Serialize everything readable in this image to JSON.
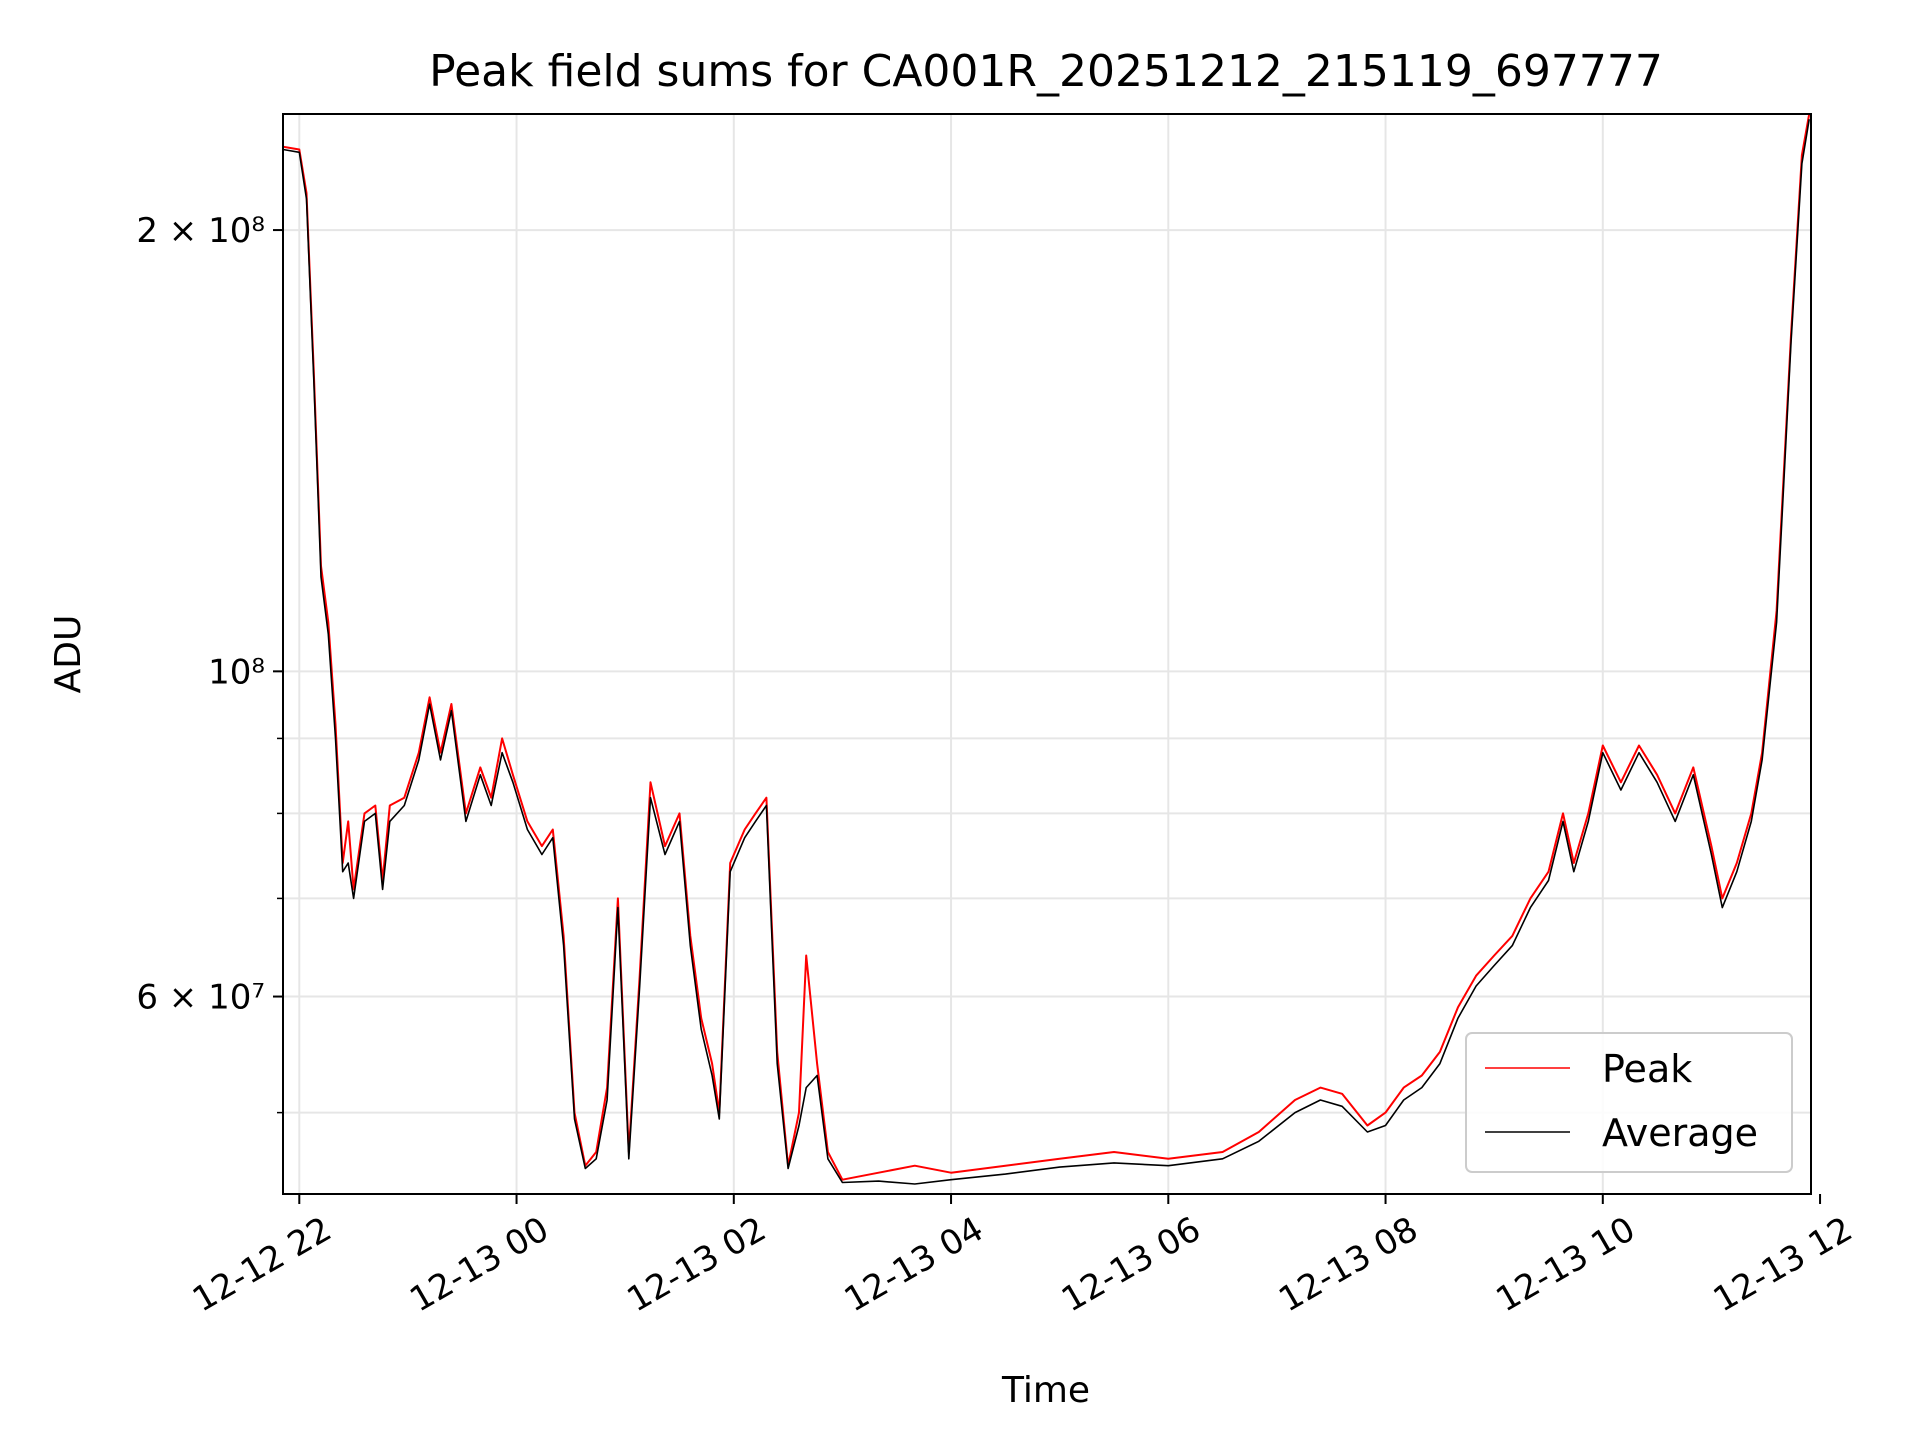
{
  "chart_data": {
    "type": "line",
    "title": "Peak field sums for CA001R_20251212_215119_697777",
    "xlabel": "Time",
    "ylabel": "ADU",
    "x_scale": "time",
    "y_scale": "log",
    "xlim": [
      "2025-12-12 21:51",
      "2025-12-13 11:55"
    ],
    "ylim": [
      44000000,
      240000000
    ],
    "grid": true,
    "legend_position": "lower-right",
    "x_ticks": [
      {
        "t": "2025-12-12 22:00",
        "label": "12-12 22"
      },
      {
        "t": "2025-12-13 00:00",
        "label": "12-13 00"
      },
      {
        "t": "2025-12-13 02:00",
        "label": "12-13 02"
      },
      {
        "t": "2025-12-13 04:00",
        "label": "12-13 04"
      },
      {
        "t": "2025-12-13 06:00",
        "label": "12-13 06"
      },
      {
        "t": "2025-12-13 08:00",
        "label": "12-13 08"
      },
      {
        "t": "2025-12-13 10:00",
        "label": "12-13 10"
      },
      {
        "t": "2025-12-13 12:00",
        "label": "12-13 12"
      }
    ],
    "y_major_ticks": [
      {
        "value": 60000000,
        "label": "6 × 10⁷"
      },
      {
        "value": 100000000,
        "label": "10⁸"
      },
      {
        "value": 200000000,
        "label": "2 × 10⁸"
      }
    ],
    "y_minor_ticks": [
      50000000,
      70000000,
      80000000,
      90000000
    ],
    "series": [
      {
        "name": "Peak",
        "color": "#ff0000",
        "points": [
          [
            "2025-12-12 21:51",
            228000000
          ],
          [
            "2025-12-12 22:00",
            227000000
          ],
          [
            "2025-12-12 22:04",
            212000000
          ],
          [
            "2025-12-12 22:08",
            160000000
          ],
          [
            "2025-12-12 22:12",
            118000000
          ],
          [
            "2025-12-12 22:16",
            108000000
          ],
          [
            "2025-12-12 22:20",
            92000000
          ],
          [
            "2025-12-12 22:24",
            74000000
          ],
          [
            "2025-12-12 22:27",
            79000000
          ],
          [
            "2025-12-12 22:30",
            71000000
          ],
          [
            "2025-12-12 22:36",
            80000000
          ],
          [
            "2025-12-12 22:42",
            81000000
          ],
          [
            "2025-12-12 22:46",
            72000000
          ],
          [
            "2025-12-12 22:50",
            81000000
          ],
          [
            "2025-12-12 22:58",
            82000000
          ],
          [
            "2025-12-12 23:06",
            88000000
          ],
          [
            "2025-12-12 23:12",
            96000000
          ],
          [
            "2025-12-12 23:18",
            88000000
          ],
          [
            "2025-12-12 23:24",
            95000000
          ],
          [
            "2025-12-12 23:32",
            80000000
          ],
          [
            "2025-12-12 23:40",
            86000000
          ],
          [
            "2025-12-12 23:46",
            82000000
          ],
          [
            "2025-12-12 23:52",
            90000000
          ],
          [
            "2025-12-12 23:58",
            85000000
          ],
          [
            "2025-12-13 00:06",
            79000000
          ],
          [
            "2025-12-13 00:14",
            76000000
          ],
          [
            "2025-12-13 00:20",
            78000000
          ],
          [
            "2025-12-13 00:26",
            66000000
          ],
          [
            "2025-12-13 00:32",
            50000000
          ],
          [
            "2025-12-13 00:38",
            46000000
          ],
          [
            "2025-12-13 00:44",
            47000000
          ],
          [
            "2025-12-13 00:50",
            52000000
          ],
          [
            "2025-12-13 00:56",
            70000000
          ],
          [
            "2025-12-13 01:02",
            47000000
          ],
          [
            "2025-12-13 01:08",
            62000000
          ],
          [
            "2025-12-13 01:14",
            84000000
          ],
          [
            "2025-12-13 01:22",
            76000000
          ],
          [
            "2025-12-13 01:30",
            80000000
          ],
          [
            "2025-12-13 01:36",
            66000000
          ],
          [
            "2025-12-13 01:42",
            58000000
          ],
          [
            "2025-12-13 01:48",
            54000000
          ],
          [
            "2025-12-13 01:52",
            50000000
          ],
          [
            "2025-12-13 01:58",
            74000000
          ],
          [
            "2025-12-13 02:06",
            78000000
          ],
          [
            "2025-12-13 02:12",
            80000000
          ],
          [
            "2025-12-13 02:18",
            82000000
          ],
          [
            "2025-12-13 02:24",
            55000000
          ],
          [
            "2025-12-13 02:30",
            46000000
          ],
          [
            "2025-12-13 02:36",
            50000000
          ],
          [
            "2025-12-13 02:40",
            64000000
          ],
          [
            "2025-12-13 02:46",
            54000000
          ],
          [
            "2025-12-13 02:52",
            47000000
          ],
          [
            "2025-12-13 03:00",
            45000000
          ],
          [
            "2025-12-13 03:20",
            45500000
          ],
          [
            "2025-12-13 03:40",
            46000000
          ],
          [
            "2025-12-13 04:00",
            45500000
          ],
          [
            "2025-12-13 04:30",
            46000000
          ],
          [
            "2025-12-13 05:00",
            46500000
          ],
          [
            "2025-12-13 05:30",
            47000000
          ],
          [
            "2025-12-13 06:00",
            46500000
          ],
          [
            "2025-12-13 06:30",
            47000000
          ],
          [
            "2025-12-13 06:50",
            48500000
          ],
          [
            "2025-12-13 07:10",
            51000000
          ],
          [
            "2025-12-13 07:24",
            52000000
          ],
          [
            "2025-12-13 07:36",
            51500000
          ],
          [
            "2025-12-13 07:50",
            49000000
          ],
          [
            "2025-12-13 08:00",
            50000000
          ],
          [
            "2025-12-13 08:10",
            52000000
          ],
          [
            "2025-12-13 08:20",
            53000000
          ],
          [
            "2025-12-13 08:30",
            55000000
          ],
          [
            "2025-12-13 08:40",
            59000000
          ],
          [
            "2025-12-13 08:50",
            62000000
          ],
          [
            "2025-12-13 09:00",
            64000000
          ],
          [
            "2025-12-13 09:10",
            66000000
          ],
          [
            "2025-12-13 09:20",
            70000000
          ],
          [
            "2025-12-13 09:30",
            73000000
          ],
          [
            "2025-12-13 09:38",
            80000000
          ],
          [
            "2025-12-13 09:44",
            74000000
          ],
          [
            "2025-12-13 09:52",
            80000000
          ],
          [
            "2025-12-13 10:00",
            89000000
          ],
          [
            "2025-12-13 10:10",
            84000000
          ],
          [
            "2025-12-13 10:20",
            89000000
          ],
          [
            "2025-12-13 10:30",
            85000000
          ],
          [
            "2025-12-13 10:40",
            80000000
          ],
          [
            "2025-12-13 10:50",
            86000000
          ],
          [
            "2025-12-13 11:00",
            76000000
          ],
          [
            "2025-12-13 11:06",
            70000000
          ],
          [
            "2025-12-13 11:14",
            74000000
          ],
          [
            "2025-12-13 11:22",
            80000000
          ],
          [
            "2025-12-13 11:28",
            88000000
          ],
          [
            "2025-12-13 11:36",
            110000000
          ],
          [
            "2025-12-13 11:44",
            170000000
          ],
          [
            "2025-12-13 11:50",
            225000000
          ],
          [
            "2025-12-13 11:54",
            240000000
          ]
        ]
      },
      {
        "name": "Average",
        "color": "#000000",
        "points": [
          [
            "2025-12-12 21:51",
            227000000
          ],
          [
            "2025-12-12 22:00",
            226000000
          ],
          [
            "2025-12-12 22:04",
            210000000
          ],
          [
            "2025-12-12 22:08",
            158000000
          ],
          [
            "2025-12-12 22:12",
            116000000
          ],
          [
            "2025-12-12 22:16",
            106000000
          ],
          [
            "2025-12-12 22:20",
            90000000
          ],
          [
            "2025-12-12 22:24",
            73000000
          ],
          [
            "2025-12-12 22:27",
            74000000
          ],
          [
            "2025-12-12 22:30",
            70000000
          ],
          [
            "2025-12-12 22:36",
            79000000
          ],
          [
            "2025-12-12 22:42",
            80000000
          ],
          [
            "2025-12-12 22:46",
            71000000
          ],
          [
            "2025-12-12 22:50",
            79000000
          ],
          [
            "2025-12-12 22:58",
            81000000
          ],
          [
            "2025-12-12 23:06",
            87000000
          ],
          [
            "2025-12-12 23:12",
            95000000
          ],
          [
            "2025-12-12 23:18",
            87000000
          ],
          [
            "2025-12-12 23:24",
            94000000
          ],
          [
            "2025-12-12 23:32",
            79000000
          ],
          [
            "2025-12-12 23:40",
            85000000
          ],
          [
            "2025-12-12 23:46",
            81000000
          ],
          [
            "2025-12-12 23:52",
            88000000
          ],
          [
            "2025-12-12 23:58",
            84000000
          ],
          [
            "2025-12-13 00:06",
            78000000
          ],
          [
            "2025-12-13 00:14",
            75000000
          ],
          [
            "2025-12-13 00:20",
            77000000
          ],
          [
            "2025-12-13 00:26",
            65000000
          ],
          [
            "2025-12-13 00:32",
            49500000
          ],
          [
            "2025-12-13 00:38",
            45800000
          ],
          [
            "2025-12-13 00:44",
            46500000
          ],
          [
            "2025-12-13 00:50",
            51000000
          ],
          [
            "2025-12-13 00:56",
            69000000
          ],
          [
            "2025-12-13 01:02",
            46500000
          ],
          [
            "2025-12-13 01:08",
            61000000
          ],
          [
            "2025-12-13 01:14",
            82000000
          ],
          [
            "2025-12-13 01:22",
            75000000
          ],
          [
            "2025-12-13 01:30",
            79000000
          ],
          [
            "2025-12-13 01:36",
            65000000
          ],
          [
            "2025-12-13 01:42",
            57000000
          ],
          [
            "2025-12-13 01:48",
            53000000
          ],
          [
            "2025-12-13 01:52",
            49500000
          ],
          [
            "2025-12-13 01:58",
            73000000
          ],
          [
            "2025-12-13 02:06",
            77000000
          ],
          [
            "2025-12-13 02:12",
            79000000
          ],
          [
            "2025-12-13 02:18",
            81000000
          ],
          [
            "2025-12-13 02:24",
            54000000
          ],
          [
            "2025-12-13 02:30",
            45800000
          ],
          [
            "2025-12-13 02:36",
            49000000
          ],
          [
            "2025-12-13 02:40",
            52000000
          ],
          [
            "2025-12-13 02:46",
            53000000
          ],
          [
            "2025-12-13 02:52",
            46500000
          ],
          [
            "2025-12-13 03:00",
            44800000
          ],
          [
            "2025-12-13 03:20",
            44900000
          ],
          [
            "2025-12-13 03:40",
            44700000
          ],
          [
            "2025-12-13 04:00",
            45000000
          ],
          [
            "2025-12-13 04:30",
            45400000
          ],
          [
            "2025-12-13 05:00",
            45900000
          ],
          [
            "2025-12-13 05:30",
            46200000
          ],
          [
            "2025-12-13 06:00",
            46000000
          ],
          [
            "2025-12-13 06:30",
            46500000
          ],
          [
            "2025-12-13 06:50",
            47800000
          ],
          [
            "2025-12-13 07:10",
            50000000
          ],
          [
            "2025-12-13 07:24",
            51000000
          ],
          [
            "2025-12-13 07:36",
            50500000
          ],
          [
            "2025-12-13 07:50",
            48500000
          ],
          [
            "2025-12-13 08:00",
            49000000
          ],
          [
            "2025-12-13 08:10",
            51000000
          ],
          [
            "2025-12-13 08:20",
            52000000
          ],
          [
            "2025-12-13 08:30",
            54000000
          ],
          [
            "2025-12-13 08:40",
            58000000
          ],
          [
            "2025-12-13 08:50",
            61000000
          ],
          [
            "2025-12-13 09:00",
            63000000
          ],
          [
            "2025-12-13 09:10",
            65000000
          ],
          [
            "2025-12-13 09:20",
            69000000
          ],
          [
            "2025-12-13 09:30",
            72000000
          ],
          [
            "2025-12-13 09:38",
            79000000
          ],
          [
            "2025-12-13 09:44",
            73000000
          ],
          [
            "2025-12-13 09:52",
            79000000
          ],
          [
            "2025-12-13 10:00",
            88000000
          ],
          [
            "2025-12-13 10:10",
            83000000
          ],
          [
            "2025-12-13 10:20",
            88000000
          ],
          [
            "2025-12-13 10:30",
            84000000
          ],
          [
            "2025-12-13 10:40",
            79000000
          ],
          [
            "2025-12-13 10:50",
            85000000
          ],
          [
            "2025-12-13 11:00",
            75000000
          ],
          [
            "2025-12-13 11:06",
            69000000
          ],
          [
            "2025-12-13 11:14",
            73000000
          ],
          [
            "2025-12-13 11:22",
            79000000
          ],
          [
            "2025-12-13 11:28",
            87000000
          ],
          [
            "2025-12-13 11:36",
            108000000
          ],
          [
            "2025-12-13 11:44",
            168000000
          ],
          [
            "2025-12-13 11:50",
            222000000
          ],
          [
            "2025-12-13 11:54",
            238000000
          ]
        ]
      }
    ]
  }
}
